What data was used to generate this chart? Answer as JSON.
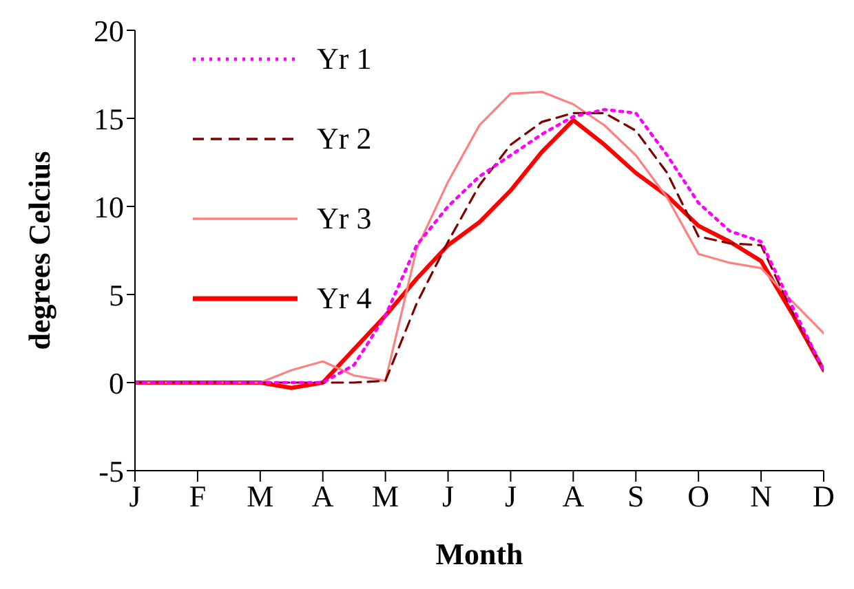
{
  "chart_data": {
    "type": "line",
    "xlabel": "Month",
    "ylabel": "degrees Celcius",
    "categories": [
      "J",
      null,
      "F",
      null,
      "M",
      null,
      "A",
      null,
      "M",
      null,
      "J",
      null,
      "J",
      null,
      "A",
      null,
      "S",
      null,
      "O",
      null,
      "N",
      null,
      "D"
    ],
    "ylim": [
      -5,
      20
    ],
    "yticks": [
      -5,
      0,
      5,
      10,
      15,
      20
    ],
    "grid": false,
    "legend": "top left",
    "marker": "none",
    "series": [
      {
        "name": "Yr 1",
        "color": "#ff00ff",
        "line_style": "dotted",
        "values": [
          0,
          0,
          0,
          0,
          0,
          0,
          0,
          1.0,
          3.8,
          7.8,
          10.0,
          11.7,
          12.9,
          14.1,
          15.1,
          15.5,
          15.3,
          12.9,
          10.2,
          8.6,
          8.0,
          4.3,
          0.7
        ]
      },
      {
        "name": "Yr 2",
        "color": "#800000",
        "line_style": "dashed",
        "values": [
          0,
          0,
          0,
          0,
          0,
          0,
          0,
          0,
          0.1,
          4.5,
          8.0,
          11.2,
          13.5,
          14.8,
          15.3,
          15.3,
          14.3,
          11.9,
          8.3,
          7.9,
          7.8,
          4.0,
          0.7
        ]
      },
      {
        "name": "Yr 3",
        "color": "#ff8080",
        "line_style": "solid",
        "values": [
          0,
          0,
          0,
          0,
          0,
          0.7,
          1.2,
          0.4,
          0.1,
          7.6,
          11.4,
          14.6,
          16.4,
          16.5,
          15.8,
          14.6,
          12.9,
          10.5,
          7.3,
          6.8,
          6.5,
          4.6,
          2.8
        ]
      },
      {
        "name": "Yr 4",
        "color": "#ff0000",
        "line_style": "solid",
        "values": [
          0,
          0,
          0,
          0,
          0,
          -0.3,
          0,
          1.9,
          3.8,
          5.9,
          7.8,
          9.1,
          10.9,
          13.1,
          14.9,
          13.5,
          11.9,
          10.6,
          8.9,
          8.0,
          6.9,
          3.9,
          0.7
        ]
      }
    ]
  }
}
